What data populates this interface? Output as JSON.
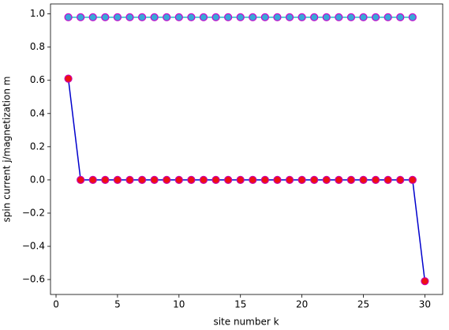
{
  "chart_data": {
    "type": "line",
    "xlabel": "site number k",
    "ylabel": "spin current j/magnetization m",
    "xlim": [
      -0.45,
      31.45
    ],
    "ylim": [
      -0.69,
      1.06
    ],
    "xticks": [
      0,
      5,
      10,
      15,
      20,
      25,
      30
    ],
    "yticks": [
      {
        "value": -0.6,
        "label": "−0.6"
      },
      {
        "value": -0.4,
        "label": "−0.4"
      },
      {
        "value": -0.2,
        "label": "−0.2"
      },
      {
        "value": 0,
        "label": "0.0"
      },
      0.2,
      0.4,
      0.6,
      0.8,
      {
        "value": 1,
        "label": "1.0"
      }
    ],
    "series": [
      {
        "color": "#0000cc",
        "marker_face": "#ee1111",
        "marker_edge": "#cc00aa",
        "x": [
          1,
          2,
          3,
          4,
          5,
          6,
          7,
          8,
          9,
          10,
          11,
          12,
          13,
          14,
          15,
          16,
          17,
          18,
          19,
          20,
          21,
          22,
          23,
          24,
          25,
          26,
          27,
          28,
          29,
          30
        ],
        "values": [
          0.61,
          0,
          0,
          0,
          0,
          0,
          0,
          0,
          0,
          0,
          0,
          0,
          0,
          0,
          0,
          0,
          0,
          0,
          0,
          0,
          0,
          0,
          0,
          0,
          0,
          0,
          0,
          0,
          0,
          -0.61
        ]
      },
      {
        "color": "#20c0c8",
        "marker_face": "#3aa6d8",
        "marker_edge": "#cc00cc",
        "x": [
          1,
          2,
          3,
          4,
          5,
          6,
          7,
          8,
          9,
          10,
          11,
          12,
          13,
          14,
          15,
          16,
          17,
          18,
          19,
          20,
          21,
          22,
          23,
          24,
          25,
          26,
          27,
          28,
          29
        ],
        "values": [
          0.98,
          0.98,
          0.98,
          0.98,
          0.98,
          0.98,
          0.98,
          0.98,
          0.98,
          0.98,
          0.98,
          0.98,
          0.98,
          0.98,
          0.98,
          0.98,
          0.98,
          0.98,
          0.98,
          0.98,
          0.98,
          0.98,
          0.98,
          0.98,
          0.98,
          0.98,
          0.98,
          0.98,
          0.98
        ]
      }
    ]
  }
}
